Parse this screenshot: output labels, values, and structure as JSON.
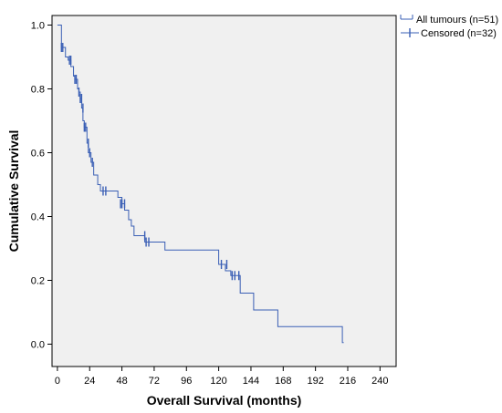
{
  "chart_data": {
    "type": "line",
    "xlabel": "Overall Survival (months)",
    "ylabel": "Cumulative Survival",
    "xlim": [
      -4,
      252
    ],
    "ylim": [
      -0.07,
      1.03
    ],
    "x_ticks": [
      0,
      24,
      48,
      72,
      96,
      120,
      144,
      168,
      192,
      216,
      240
    ],
    "y_ticks": [
      0.0,
      0.2,
      0.4,
      0.6,
      0.8,
      1.0
    ],
    "x_tick_labels": [
      "0",
      "24",
      "48",
      "72",
      "96",
      "120",
      "144",
      "168",
      "192",
      "216",
      "240"
    ],
    "y_tick_labels": [
      "0.0",
      "0.2",
      "0.4",
      "0.6",
      "0.8",
      "1.0"
    ],
    "grid": false,
    "legend_position": "top-right-outside",
    "colors": {
      "line": "#3a5fb5",
      "plot_background": "#f0f0f0",
      "axis": "#000000"
    },
    "legend": [
      {
        "label": "All tumours (n=51)",
        "marker": "line"
      },
      {
        "label": "Censored (n=32)",
        "marker": "plus"
      }
    ],
    "series": [
      {
        "name": "All tumours (n=51)",
        "step_points": [
          [
            0,
            1.0
          ],
          [
            3,
            0.93
          ],
          [
            5,
            0.93
          ],
          [
            6,
            0.9
          ],
          [
            8,
            0.89
          ],
          [
            10,
            0.87
          ],
          [
            12,
            0.84
          ],
          [
            13,
            0.83
          ],
          [
            15,
            0.8
          ],
          [
            16,
            0.79
          ],
          [
            17,
            0.77
          ],
          [
            18,
            0.74
          ],
          [
            19,
            0.7
          ],
          [
            20,
            0.68
          ],
          [
            22,
            0.63
          ],
          [
            23,
            0.6
          ],
          [
            25,
            0.57
          ],
          [
            27,
            0.53
          ],
          [
            30,
            0.5
          ],
          [
            32,
            0.48
          ],
          [
            45,
            0.46
          ],
          [
            48,
            0.44
          ],
          [
            50,
            0.42
          ],
          [
            53,
            0.39
          ],
          [
            55,
            0.37
          ],
          [
            57,
            0.34
          ],
          [
            65,
            0.32
          ],
          [
            80,
            0.295
          ],
          [
            120,
            0.25
          ],
          [
            125,
            0.23
          ],
          [
            129,
            0.215
          ],
          [
            136,
            0.16
          ],
          [
            146,
            0.107
          ],
          [
            164,
            0.055
          ],
          [
            212,
            0.005
          ]
        ],
        "end_x": 213
      },
      {
        "name": "Censored (n=32)",
        "points": [
          [
            3,
            0.93
          ],
          [
            4,
            0.93
          ],
          [
            9,
            0.89
          ],
          [
            10,
            0.89
          ],
          [
            13,
            0.83
          ],
          [
            14,
            0.83
          ],
          [
            16,
            0.79
          ],
          [
            17,
            0.77
          ],
          [
            18,
            0.77
          ],
          [
            19,
            0.74
          ],
          [
            20,
            0.68
          ],
          [
            21,
            0.68
          ],
          [
            23,
            0.63
          ],
          [
            24,
            0.6
          ],
          [
            26,
            0.57
          ],
          [
            34,
            0.48
          ],
          [
            36,
            0.48
          ],
          [
            47,
            0.44
          ],
          [
            48,
            0.44
          ],
          [
            50,
            0.44
          ],
          [
            65,
            0.34
          ],
          [
            66,
            0.32
          ],
          [
            68,
            0.32
          ],
          [
            122,
            0.25
          ],
          [
            126,
            0.25
          ],
          [
            130,
            0.215
          ],
          [
            132,
            0.215
          ],
          [
            135,
            0.215
          ]
        ]
      }
    ]
  }
}
